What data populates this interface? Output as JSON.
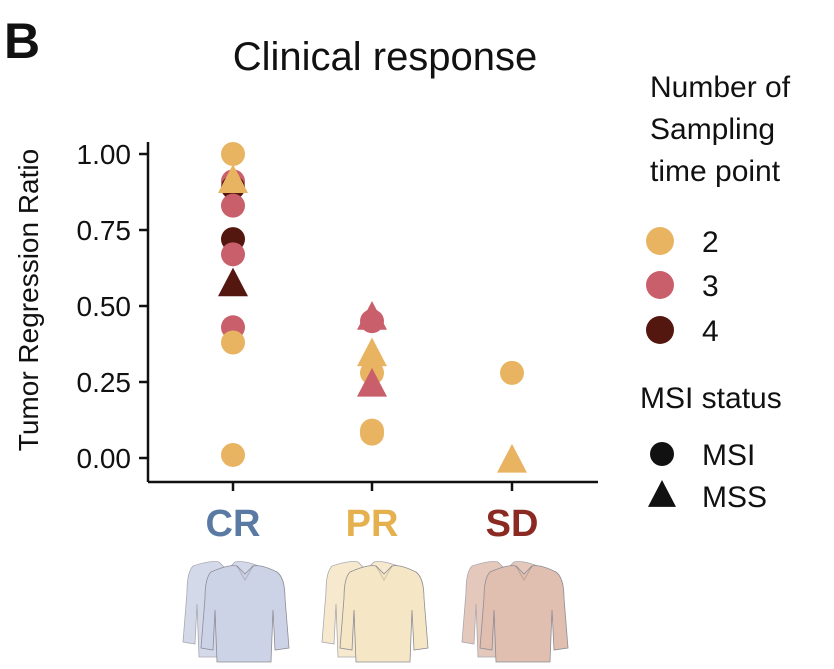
{
  "panel_label": "B",
  "chart_data": {
    "type": "scatter",
    "title": "Clinical response",
    "xlabel": "",
    "ylabel": "Tumor Regression Ratio",
    "categories": [
      "CR",
      "PR",
      "SD"
    ],
    "category_colors": [
      "#5b7aa3",
      "#e5b14f",
      "#8a2a22"
    ],
    "yticks": [
      "0.00",
      "0.25",
      "0.50",
      "0.75",
      "1.00"
    ],
    "ylim": [
      0,
      1
    ],
    "grid": false,
    "colors": {
      "2": "#e9b461",
      "3": "#c85f6b",
      "4": "#541710"
    },
    "legend": {
      "position": "right",
      "color_title": "Number of Sampling time point",
      "color_title_lines": [
        "Number of",
        "Sampling",
        "time point"
      ],
      "color_items": [
        "2",
        "3",
        "4"
      ],
      "shape_title": "MSI status",
      "shape_items": [
        {
          "label": "MSI",
          "shape": "circle"
        },
        {
          "label": "MSS",
          "shape": "triangle"
        }
      ]
    },
    "points": [
      {
        "category": "CR",
        "y": 1.0,
        "tp": "2",
        "msi": "MSI"
      },
      {
        "category": "CR",
        "y": 0.91,
        "tp": "3",
        "msi": "MSI"
      },
      {
        "category": "CR",
        "y": 0.89,
        "tp": "4",
        "msi": "MSI"
      },
      {
        "category": "CR",
        "y": 0.91,
        "tp": "2",
        "msi": "MSS"
      },
      {
        "category": "CR",
        "y": 0.83,
        "tp": "3",
        "msi": "MSI"
      },
      {
        "category": "CR",
        "y": 0.72,
        "tp": "4",
        "msi": "MSI"
      },
      {
        "category": "CR",
        "y": 0.67,
        "tp": "3",
        "msi": "MSI"
      },
      {
        "category": "CR",
        "y": 0.57,
        "tp": "4",
        "msi": "MSS"
      },
      {
        "category": "CR",
        "y": 0.43,
        "tp": "3",
        "msi": "MSI"
      },
      {
        "category": "CR",
        "y": 0.38,
        "tp": "2",
        "msi": "MSI"
      },
      {
        "category": "CR",
        "y": 0.01,
        "tp": "2",
        "msi": "MSI"
      },
      {
        "category": "PR",
        "y": 0.46,
        "tp": "3",
        "msi": "MSS"
      },
      {
        "category": "PR",
        "y": 0.45,
        "tp": "3",
        "msi": "MSI"
      },
      {
        "category": "PR",
        "y": 0.34,
        "tp": "2",
        "msi": "MSS"
      },
      {
        "category": "PR",
        "y": 0.28,
        "tp": "2",
        "msi": "MSI"
      },
      {
        "category": "PR",
        "y": 0.24,
        "tp": "3",
        "msi": "MSS"
      },
      {
        "category": "PR",
        "y": 0.09,
        "tp": "2",
        "msi": "MSI"
      },
      {
        "category": "PR",
        "y": 0.08,
        "tp": "2",
        "msi": "MSI"
      },
      {
        "category": "SD",
        "y": 0.28,
        "tp": "2",
        "msi": "MSI"
      },
      {
        "category": "SD",
        "y": -0.01,
        "tp": "2",
        "msi": "MSS"
      }
    ],
    "body_icon_colors": [
      "#cdd3e6",
      "#f5e6c6",
      "#e0bfb1"
    ]
  }
}
